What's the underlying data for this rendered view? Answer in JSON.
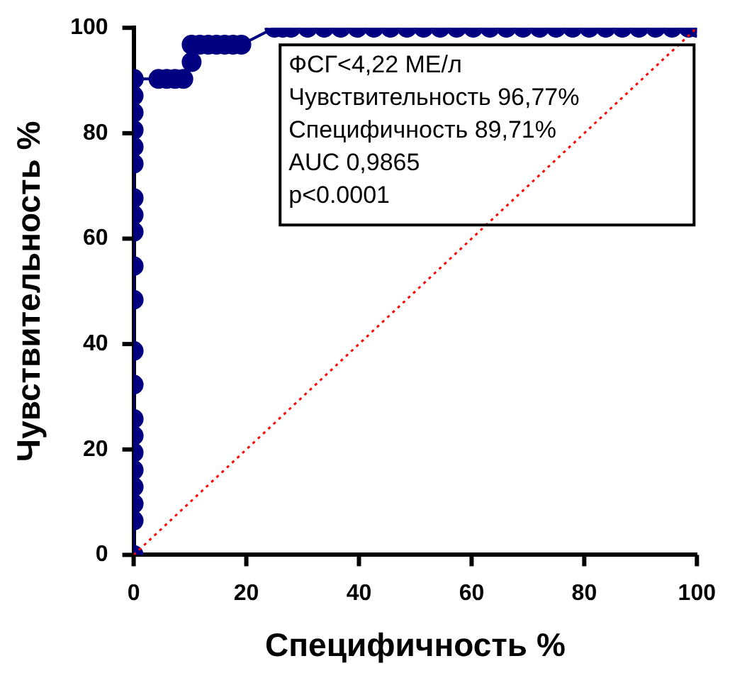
{
  "chart_data": {
    "type": "line",
    "xlabel": "Специфичность %",
    "ylabel": "Чувствительность %",
    "xlim": [
      0,
      100
    ],
    "ylim": [
      0,
      100
    ],
    "xticks": [
      0,
      20,
      40,
      60,
      80,
      100
    ],
    "yticks": [
      0,
      20,
      40,
      60,
      80,
      100
    ],
    "grid": false,
    "legend": false,
    "series": [
      {
        "color": "#000080",
        "marker": "circle",
        "line_style": "solid",
        "x": [
          0,
          0,
          0,
          0,
          0,
          0,
          0,
          0,
          0,
          0,
          0,
          0,
          0,
          0,
          0,
          0,
          0,
          0,
          0,
          0,
          0,
          0,
          4.41,
          5.88,
          7.35,
          8.82,
          10.29,
          10.29,
          11.76,
          13.24,
          14.71,
          16.18,
          17.65,
          19.12,
          25,
          26.47,
          27.94,
          30.88,
          33.82,
          36.76,
          39.71,
          42.65,
          45.59,
          48.53,
          51.47,
          54.41,
          57.35,
          60.29,
          63.24,
          66.18,
          69.12,
          72.06,
          75,
          77.94,
          80.88,
          83.82,
          86.76,
          89.71,
          92.65,
          95.59,
          98.53,
          100
        ],
        "values": [
          0,
          6.5,
          9.7,
          12.9,
          16.1,
          19.4,
          22.6,
          25.8,
          32.3,
          38.7,
          48.4,
          54.8,
          61.3,
          64.5,
          67.7,
          74.2,
          77.4,
          80.6,
          83.9,
          87.1,
          90.3,
          90.3,
          90.3,
          90.3,
          90.3,
          90.3,
          93.5,
          96.8,
          96.8,
          96.8,
          96.8,
          96.8,
          96.8,
          96.8,
          100,
          100,
          100,
          100,
          100,
          100,
          100,
          100,
          100,
          100,
          100,
          100,
          100,
          100,
          100,
          100,
          100,
          100,
          100,
          100,
          100,
          100,
          100,
          100,
          100,
          100,
          100,
          100
        ]
      },
      {
        "color": "#ff0000",
        "marker": "none",
        "line_style": "dotted",
        "x": [
          0,
          100
        ],
        "values": [
          0,
          100
        ]
      }
    ],
    "annotations": [
      "ФСГ<4,22 МЕ/л",
      "Чувствительность 96,77%",
      "Специфичность 89,71%",
      "AUC 0,9865",
      "p<0.0001"
    ]
  }
}
